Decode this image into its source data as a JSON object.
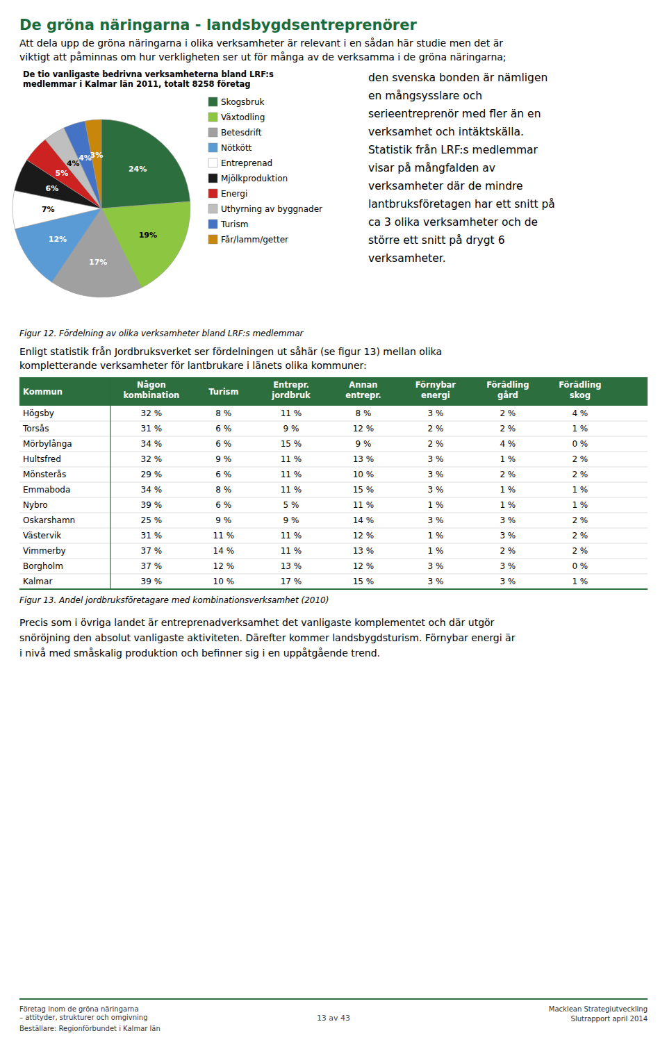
{
  "page": {
    "title": "De gröna näringarna - landsbygdsentreprenörer",
    "title_color": "#1a6b3c",
    "intro": [
      "Att dela upp de gröna näringarna i olika verksamheter är relevant i en sådan här studie men det är",
      "viktigt att påminnas om hur verkligheten ser ut för många av de verksamma i de gröna näringarna;"
    ],
    "right_text": [
      "den svenska bonden är nämligen",
      "en mångsysslare och",
      "serieentreprenör med fler än en",
      "verksamhet och intäktskälla.",
      "Statistik från LRF:s medlemmar",
      "visar på mångfalden av",
      "verksamheter där de mindre",
      "lantbruksföretagen har ett snitt på",
      "ca 3 olika verksamheter och de",
      "större ett snitt på drygt 6",
      "verksamheter."
    ],
    "figure_captions": [
      "Figur 12. Fördelning av olika verksamheter bland LRF:s medlemmar",
      "Figur 13. Andel jordbruksföretagare med kombinationsverksamhet (2010)"
    ],
    "between_text": [
      "Enligt statistik från Jordbruksverket ser fördelningen ut såhär (se figur 13) mellan olika",
      "kompletterande verksamheter för lantbrukare i länets olika kommuner:"
    ],
    "bottom_text": [
      "Precis som i övriga landet är entreprenadverksamhet det vanligaste komplementet och där utgör",
      "snöröjning den absolut vanligaste aktiviteten. Därefter kommer landsbygdsturism. Förnybar energi är",
      "i nivå med småskalig produktion och befinner sig i en uppåtgående trend."
    ],
    "footer_left": [
      "Företag inom de gröna näringarna",
      "– attityder, strukturer och omgivning",
      "Beställare: Regionförbundet i Kalmar län"
    ],
    "footer_center": "13 av 43",
    "footer_right": [
      "Macklean Strategiutveckling",
      "Slutrapport april 2014"
    ],
    "rule_color": "#2d6e3e"
  },
  "chart_data": [
    {
      "type": "pie",
      "title": "De tio vanligaste bedrivna verksamheterna bland LRF:s\nmedlemmar i Kalmar län 2011, totalt 8258 företag",
      "categories": [
        "Skogsbruk",
        "Växtodling",
        "Betesdrift",
        "Nötkött",
        "Entreprenad",
        "Mjölkproduktion",
        "Energi",
        "Uthyrning av byggnader",
        "Turism",
        "Får/lamm/getter"
      ],
      "values": [
        24,
        19,
        17,
        12,
        7,
        6,
        5,
        4,
        4,
        3
      ],
      "value_labels": [
        "24%",
        "19%",
        "17%",
        "12%",
        "7%",
        "6%",
        "5%",
        "4%",
        "4%",
        "3%"
      ],
      "colors": [
        "#2d6e3e",
        "#8dc641",
        "#a0a0a0",
        "#5b9bd5",
        "#ffffff",
        "#1a1a1a",
        "#cc2222",
        "#bfbfbf",
        "#4472c4",
        "#c8860a"
      ],
      "data_labels": true,
      "legend": "right"
    },
    {
      "type": "table",
      "color": "#2d6e3e",
      "columns": [
        "Kommun",
        "Någon\nkombination",
        "Turism",
        "Entrepr.\njordbruk",
        "Annan\nentrepr.",
        "Förnybar\nenergi",
        "Förädling\ngård",
        "Förädling\nskog"
      ],
      "rows": [
        [
          "Högsby",
          "32 %",
          "8 %",
          "11 %",
          "8 %",
          "3 %",
          "2 %",
          "4 %"
        ],
        [
          "Torsås",
          "31 %",
          "6 %",
          "9 %",
          "12 %",
          "2 %",
          "2 %",
          "1 %"
        ],
        [
          "Mörbylånga",
          "34 %",
          "6 %",
          "15 %",
          "9 %",
          "2 %",
          "4 %",
          "0 %"
        ],
        [
          "Hultsfred",
          "32 %",
          "9 %",
          "11 %",
          "13 %",
          "3 %",
          "1 %",
          "2 %"
        ],
        [
          "Mönsterås",
          "29 %",
          "6 %",
          "11 %",
          "10 %",
          "3 %",
          "2 %",
          "2 %"
        ],
        [
          "Emmaboda",
          "34 %",
          "8 %",
          "11 %",
          "15 %",
          "3 %",
          "1 %",
          "1 %"
        ],
        [
          "Nybro",
          "39 %",
          "6 %",
          "5 %",
          "11 %",
          "1 %",
          "1 %",
          "1 %"
        ],
        [
          "Oskarshamn",
          "25 %",
          "9 %",
          "9 %",
          "14 %",
          "3 %",
          "3 %",
          "2 %"
        ],
        [
          "Västervik",
          "31 %",
          "11 %",
          "11 %",
          "12 %",
          "1 %",
          "3 %",
          "2 %"
        ],
        [
          "Vimmerby",
          "37 %",
          "14 %",
          "11 %",
          "13 %",
          "1 %",
          "2 %",
          "2 %"
        ],
        [
          "Borgholm",
          "37 %",
          "12 %",
          "13 %",
          "12 %",
          "3 %",
          "3 %",
          "0 %"
        ],
        [
          "Kalmar",
          "39 %",
          "10 %",
          "17 %",
          "15 %",
          "3 %",
          "3 %",
          "1 %"
        ]
      ]
    }
  ]
}
